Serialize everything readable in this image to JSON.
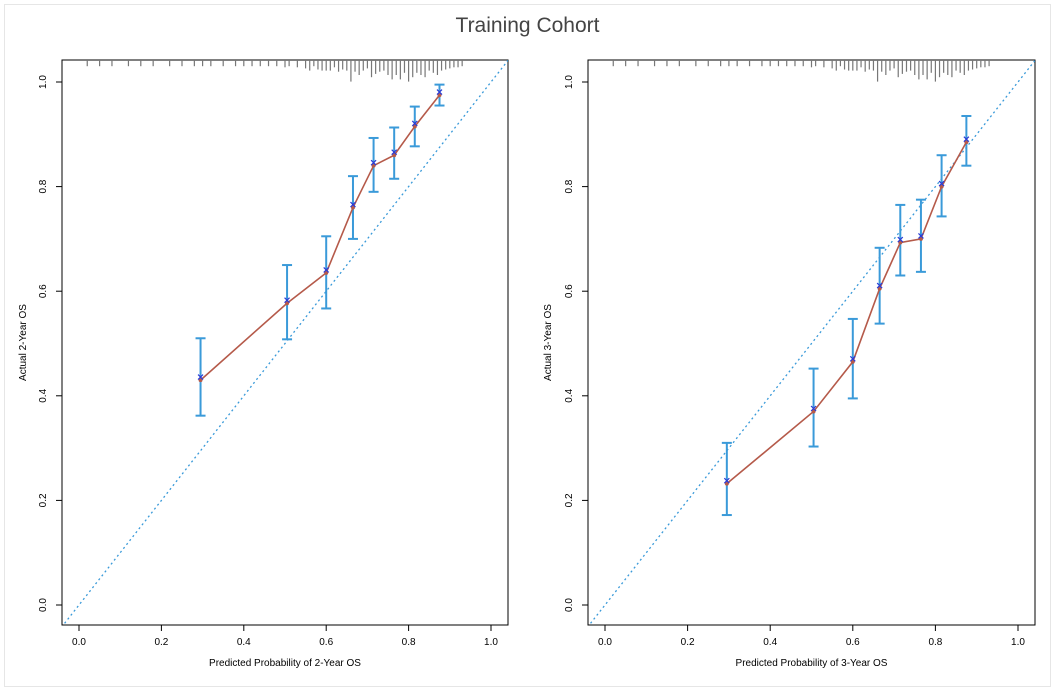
{
  "figure": {
    "title": "Training Cohort"
  },
  "colors": {
    "calibration_line": "#b55a4a",
    "error_bar": "#3a9ad9",
    "ideal_line": "#3a9ad9",
    "bootstrap_mark": "#2b3cd6",
    "rug": "#777777"
  },
  "chart_data": [
    {
      "type": "line",
      "xlabel": "Predicted Probability of 2-Year OS",
      "ylabel": "Actual 2-Year OS",
      "xlim": [
        0.0,
        1.0
      ],
      "ylim": [
        0.0,
        1.0
      ],
      "xticks": [
        "0.0",
        "0.2",
        "0.4",
        "0.6",
        "0.8",
        "1.0"
      ],
      "yticks": [
        "0.0",
        "0.2",
        "0.4",
        "0.6",
        "0.8",
        "1.0"
      ],
      "reference_line": "diagonal y = x",
      "x": [
        0.295,
        0.505,
        0.6,
        0.665,
        0.715,
        0.765,
        0.815,
        0.875
      ],
      "y": [
        0.43,
        0.577,
        0.635,
        0.76,
        0.84,
        0.86,
        0.915,
        0.975
      ],
      "y_lower": [
        0.362,
        0.508,
        0.567,
        0.7,
        0.79,
        0.815,
        0.877,
        0.955
      ],
      "y_upper": [
        0.51,
        0.65,
        0.705,
        0.82,
        0.893,
        0.913,
        0.953,
        0.995
      ],
      "rug_x": [
        0.02,
        0.05,
        0.08,
        0.12,
        0.15,
        0.18,
        0.22,
        0.25,
        0.28,
        0.3,
        0.32,
        0.35,
        0.38,
        0.4,
        0.42,
        0.44,
        0.46,
        0.48,
        0.5,
        0.51,
        0.53,
        0.55,
        0.56,
        0.57,
        0.58,
        0.59,
        0.6,
        0.61,
        0.62,
        0.63,
        0.64,
        0.65,
        0.66,
        0.67,
        0.68,
        0.69,
        0.7,
        0.71,
        0.72,
        0.73,
        0.74,
        0.75,
        0.76,
        0.77,
        0.78,
        0.79,
        0.8,
        0.81,
        0.82,
        0.83,
        0.84,
        0.85,
        0.86,
        0.87,
        0.88,
        0.89,
        0.9,
        0.91,
        0.92,
        0.93
      ],
      "rug_h": [
        0.1,
        0.1,
        0.1,
        0.1,
        0.1,
        0.1,
        0.1,
        0.1,
        0.1,
        0.1,
        0.1,
        0.1,
        0.1,
        0.1,
        0.1,
        0.1,
        0.1,
        0.1,
        0.15,
        0.1,
        0.15,
        0.2,
        0.3,
        0.1,
        0.25,
        0.3,
        0.3,
        0.3,
        0.15,
        0.35,
        0.25,
        0.3,
        0.8,
        0.35,
        0.5,
        0.3,
        0.2,
        0.6,
        0.45,
        0.35,
        0.3,
        0.5,
        0.7,
        0.5,
        0.7,
        0.4,
        0.8,
        0.6,
        0.4,
        0.5,
        0.6,
        0.3,
        0.4,
        0.5,
        0.3,
        0.25,
        0.2,
        0.15,
        0.15,
        0.1
      ]
    },
    {
      "type": "line",
      "xlabel": "Predicted Probability of 3-Year OS",
      "ylabel": "Actual 3-Year OS",
      "xlim": [
        0.0,
        1.0
      ],
      "ylim": [
        0.0,
        1.0
      ],
      "xticks": [
        "0.0",
        "0.2",
        "0.4",
        "0.6",
        "0.8",
        "1.0"
      ],
      "yticks": [
        "0.0",
        "0.2",
        "0.4",
        "0.6",
        "0.8",
        "1.0"
      ],
      "reference_line": "diagonal y = x",
      "x": [
        0.295,
        0.505,
        0.6,
        0.665,
        0.715,
        0.765,
        0.815,
        0.875
      ],
      "y": [
        0.232,
        0.37,
        0.465,
        0.605,
        0.693,
        0.7,
        0.8,
        0.885
      ],
      "y_lower": [
        0.172,
        0.303,
        0.395,
        0.538,
        0.63,
        0.637,
        0.743,
        0.84
      ],
      "y_upper": [
        0.31,
        0.452,
        0.547,
        0.683,
        0.765,
        0.775,
        0.86,
        0.935
      ],
      "rug_x": [
        0.02,
        0.05,
        0.08,
        0.12,
        0.15,
        0.18,
        0.22,
        0.25,
        0.28,
        0.3,
        0.32,
        0.35,
        0.38,
        0.4,
        0.42,
        0.44,
        0.46,
        0.48,
        0.5,
        0.51,
        0.53,
        0.55,
        0.56,
        0.57,
        0.58,
        0.59,
        0.6,
        0.61,
        0.62,
        0.63,
        0.64,
        0.65,
        0.66,
        0.67,
        0.68,
        0.69,
        0.7,
        0.71,
        0.72,
        0.73,
        0.74,
        0.75,
        0.76,
        0.77,
        0.78,
        0.79,
        0.8,
        0.81,
        0.82,
        0.83,
        0.84,
        0.85,
        0.86,
        0.87,
        0.88,
        0.89,
        0.9,
        0.91,
        0.92,
        0.93
      ],
      "rug_h": [
        0.1,
        0.1,
        0.1,
        0.1,
        0.1,
        0.1,
        0.1,
        0.1,
        0.1,
        0.1,
        0.1,
        0.1,
        0.1,
        0.1,
        0.1,
        0.1,
        0.1,
        0.1,
        0.15,
        0.1,
        0.15,
        0.2,
        0.3,
        0.1,
        0.25,
        0.3,
        0.3,
        0.3,
        0.15,
        0.35,
        0.25,
        0.3,
        0.8,
        0.35,
        0.5,
        0.3,
        0.2,
        0.6,
        0.45,
        0.35,
        0.3,
        0.5,
        0.7,
        0.5,
        0.7,
        0.4,
        0.8,
        0.6,
        0.4,
        0.5,
        0.6,
        0.3,
        0.4,
        0.5,
        0.3,
        0.25,
        0.2,
        0.15,
        0.15,
        0.1
      ]
    }
  ]
}
